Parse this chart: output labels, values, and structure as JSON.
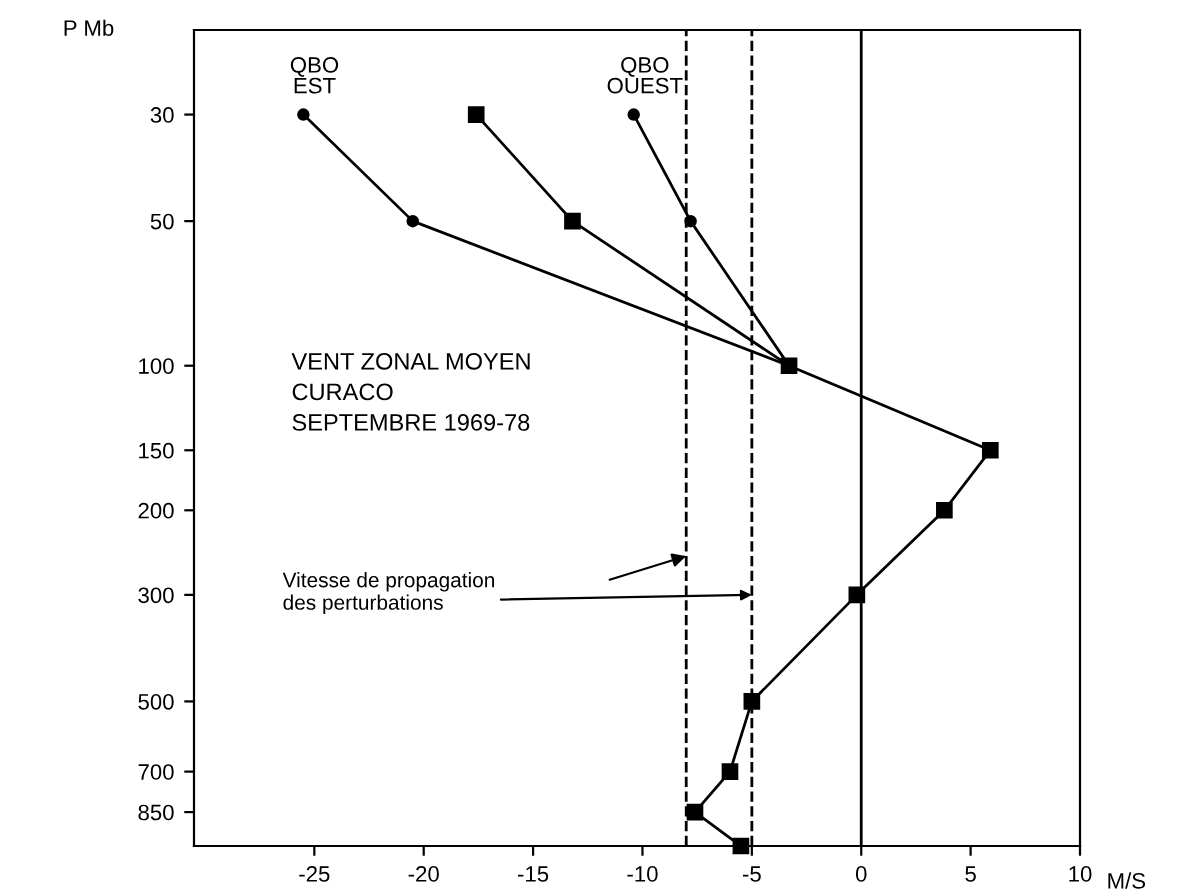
{
  "chart_data": {
    "type": "line",
    "xlabel": "M/S",
    "ylabel": "P Mb",
    "log": "y",
    "xlim": [
      -30.5,
      10
    ],
    "ylim": [
      1000,
      20
    ],
    "xticks": [
      -25,
      -20,
      -15,
      -10,
      -5,
      0,
      5,
      10
    ],
    "yticks": [
      30,
      50,
      100,
      150,
      200,
      300,
      500,
      700,
      850
    ],
    "grid": false,
    "legend": false,
    "line_style": "solid",
    "series": [
      {
        "color": "#000000",
        "marker": "square",
        "x": [
          -3.3,
          5.9,
          3.8,
          -0.2,
          -5.0,
          -6.0,
          -7.6,
          -5.5
        ],
        "values": [
          100,
          150,
          200,
          300,
          500,
          700,
          850,
          1000
        ]
      },
      {
        "color": "#000000",
        "marker": "circle",
        "x": [
          -25.5,
          -20.5,
          -3.3
        ],
        "values": [
          30,
          50,
          100
        ]
      },
      {
        "color": "#000000",
        "marker": "square",
        "x": [
          -17.6,
          -13.2,
          -3.3
        ],
        "values": [
          30,
          50,
          100
        ]
      },
      {
        "color": "#000000",
        "marker": "circle",
        "x": [
          -10.4,
          -7.8,
          -3.3
        ],
        "values": [
          30,
          50,
          100
        ]
      }
    ],
    "ref_lines": [
      {
        "axis": "x",
        "value": -8,
        "color": "#000000",
        "line_style": "dashed"
      },
      {
        "axis": "x",
        "value": -5,
        "color": "#000000",
        "line_style": "dashed"
      },
      {
        "axis": "x",
        "value": 0,
        "color": "#000000",
        "line_style": "solid"
      }
    ],
    "annotations": [
      {
        "text": "QBO\nEST",
        "x": -25.5,
        "y": 30
      },
      {
        "text": "QBO\nOUEST",
        "x": -10.4,
        "y": 30
      },
      "VENT ZONAL MOYEN\nCURACO\nSEPTEMBRE 1969-78",
      {
        "text": "Vitesse de propagation\ndes perturbations",
        "x": -5,
        "y": 300
      }
    ]
  }
}
